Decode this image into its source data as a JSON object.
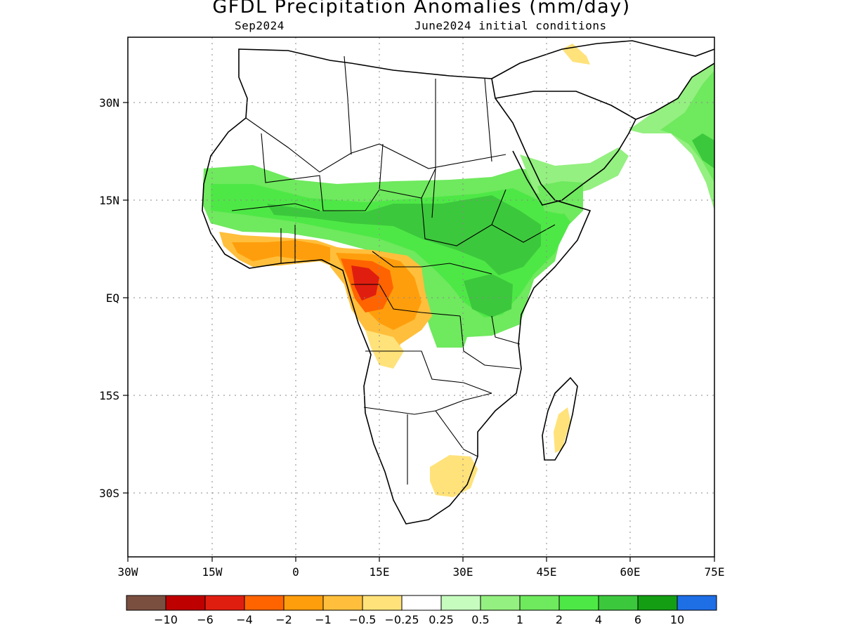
{
  "title": "GFDL Precipitation Anomalies (mm/day)",
  "subtitle_left": "Sep2024",
  "subtitle_right": "June2024 initial conditions",
  "axes": {
    "lon_ticks": [
      "30W",
      "15W",
      "0",
      "15E",
      "30E",
      "45E",
      "60E",
      "75E"
    ],
    "lat_ticks": [
      "30N",
      "15N",
      "EQ",
      "15S",
      "30S"
    ]
  },
  "colorbar": {
    "colors": [
      "#7b4f40",
      "#bf0000",
      "#e01e10",
      "#ff6400",
      "#ff9e0c",
      "#ffbf3c",
      "#ffe27a",
      "#ffffff",
      "#c6fcbe",
      "#94f080",
      "#6fe95e",
      "#4ee846",
      "#3cc83c",
      "#149e14",
      "#1e6ee6"
    ],
    "labels": [
      "−10",
      "−6",
      "−4",
      "−2",
      "−1",
      "−0.5",
      "−0.25",
      "0.25",
      "0.5",
      "1",
      "2",
      "4",
      "6",
      "10"
    ]
  }
}
